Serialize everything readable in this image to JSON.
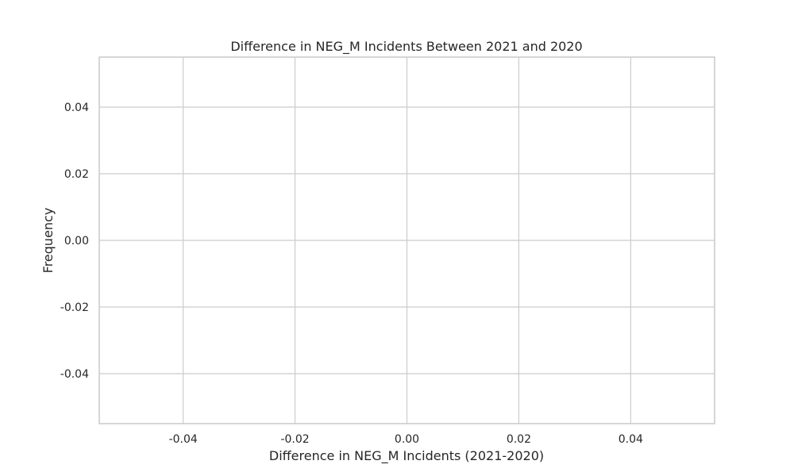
{
  "chart_data": {
    "type": "bar",
    "title": "Difference in NEG_M Incidents Between 2021 and 2020",
    "xlabel": "Difference in NEG_M Incidents (2021-2020)",
    "ylabel": "Frequency",
    "xlim": [
      -0.055,
      0.055
    ],
    "ylim": [
      -0.055,
      0.055
    ],
    "xticks": [
      -0.04,
      -0.02,
      0.0,
      0.02,
      0.04
    ],
    "xtick_labels": [
      "-0.04",
      "-0.02",
      "0.00",
      "0.02",
      "0.04"
    ],
    "yticks": [
      0.04,
      0.02,
      0.0,
      -0.02,
      -0.04
    ],
    "ytick_labels": [
      "0.04",
      "0.02",
      "0.00",
      "-0.02",
      "-0.04"
    ],
    "grid": true,
    "series": [],
    "colors": {
      "grid": "#cccccc",
      "text": "#262626",
      "background": "#ffffff"
    }
  }
}
